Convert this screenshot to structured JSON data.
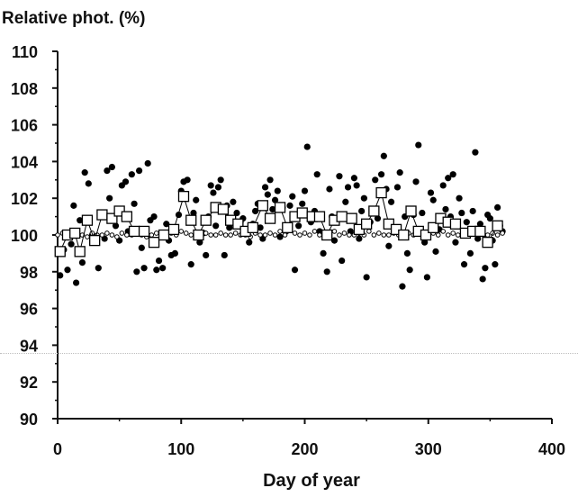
{
  "chart_data": {
    "type": "scatter",
    "ylabel": "Relative phot. (%)",
    "xlabel": "Day of year",
    "xlim": [
      0,
      400
    ],
    "ylim": [
      90,
      110
    ],
    "xticks": [
      0,
      100,
      200,
      300,
      400
    ],
    "yticks": [
      90,
      92,
      94,
      96,
      98,
      100,
      102,
      104,
      106,
      108,
      110
    ],
    "series": [
      {
        "marker": "filled-circle",
        "color": "#000000",
        "points": [
          [
            2,
            97.8
          ],
          [
            5,
            99.2
          ],
          [
            8,
            98.1
          ],
          [
            11,
            99.5
          ],
          [
            13,
            101.6
          ],
          [
            15,
            97.4
          ],
          [
            18,
            100.8
          ],
          [
            20,
            98.5
          ],
          [
            22,
            103.4
          ],
          [
            25,
            102.8
          ],
          [
            28,
            100.0
          ],
          [
            30,
            99.6
          ],
          [
            33,
            98.2
          ],
          [
            35,
            101.2
          ],
          [
            38,
            99.8
          ],
          [
            40,
            103.5
          ],
          [
            42,
            102.0
          ],
          [
            44,
            103.7
          ],
          [
            47,
            100.5
          ],
          [
            50,
            99.7
          ],
          [
            52,
            102.7
          ],
          [
            55,
            102.9
          ],
          [
            57,
            100.2
          ],
          [
            60,
            103.3
          ],
          [
            62,
            101.7
          ],
          [
            64,
            98.0
          ],
          [
            66,
            103.5
          ],
          [
            68,
            99.3
          ],
          [
            70,
            98.2
          ],
          [
            73,
            103.9
          ],
          [
            75,
            100.8
          ],
          [
            78,
            101.0
          ],
          [
            80,
            98.1
          ],
          [
            82,
            98.6
          ],
          [
            85,
            98.2
          ],
          [
            88,
            100.6
          ],
          [
            90,
            99.7
          ],
          [
            92,
            98.9
          ],
          [
            95,
            99.0
          ],
          [
            98,
            101.1
          ],
          [
            100,
            102.4
          ],
          [
            102,
            102.9
          ],
          [
            105,
            103.0
          ],
          [
            108,
            98.4
          ],
          [
            110,
            101.2
          ],
          [
            112,
            101.9
          ],
          [
            115,
            99.6
          ],
          [
            118,
            100.1
          ],
          [
            120,
            98.9
          ],
          [
            122,
            101.0
          ],
          [
            124,
            102.7
          ],
          [
            126,
            102.3
          ],
          [
            128,
            100.5
          ],
          [
            130,
            102.6
          ],
          [
            132,
            103.0
          ],
          [
            135,
            98.9
          ],
          [
            137,
            101.6
          ],
          [
            139,
            100.4
          ],
          [
            142,
            101.8
          ],
          [
            145,
            101.2
          ],
          [
            148,
            100.7
          ],
          [
            150,
            100.9
          ],
          [
            152,
            100.1
          ],
          [
            155,
            99.6
          ],
          [
            158,
            100.6
          ],
          [
            160,
            101.3
          ],
          [
            162,
            101.7
          ],
          [
            164,
            100.4
          ],
          [
            166,
            99.8
          ],
          [
            168,
            102.6
          ],
          [
            170,
            102.2
          ],
          [
            172,
            103.0
          ],
          [
            174,
            101.4
          ],
          [
            176,
            101.9
          ],
          [
            178,
            102.4
          ],
          [
            180,
            99.9
          ],
          [
            182,
            101.5
          ],
          [
            185,
            100.2
          ],
          [
            188,
            101.6
          ],
          [
            190,
            102.1
          ],
          [
            192,
            98.1
          ],
          [
            195,
            100.5
          ],
          [
            198,
            101.7
          ],
          [
            200,
            102.4
          ],
          [
            202,
            104.8
          ],
          [
            205,
            100.7
          ],
          [
            208,
            101.3
          ],
          [
            210,
            103.3
          ],
          [
            212,
            100.2
          ],
          [
            215,
            99.0
          ],
          [
            218,
            98.0
          ],
          [
            220,
            102.5
          ],
          [
            222,
            101.0
          ],
          [
            224,
            99.7
          ],
          [
            226,
            100.9
          ],
          [
            228,
            103.2
          ],
          [
            230,
            98.6
          ],
          [
            233,
            101.8
          ],
          [
            235,
            102.6
          ],
          [
            237,
            100.2
          ],
          [
            240,
            103.1
          ],
          [
            242,
            102.7
          ],
          [
            244,
            99.8
          ],
          [
            246,
            101.3
          ],
          [
            248,
            102.0
          ],
          [
            250,
            97.7
          ],
          [
            253,
            100.7
          ],
          [
            255,
            101.4
          ],
          [
            257,
            103.0
          ],
          [
            259,
            100.9
          ],
          [
            262,
            103.3
          ],
          [
            264,
            104.3
          ],
          [
            266,
            102.5
          ],
          [
            268,
            99.4
          ],
          [
            270,
            101.8
          ],
          [
            272,
            100.4
          ],
          [
            275,
            102.6
          ],
          [
            277,
            103.4
          ],
          [
            279,
            97.2
          ],
          [
            281,
            101.0
          ],
          [
            283,
            99.0
          ],
          [
            285,
            98.1
          ],
          [
            288,
            101.1
          ],
          [
            290,
            102.9
          ],
          [
            292,
            104.9
          ],
          [
            295,
            101.2
          ],
          [
            297,
            99.6
          ],
          [
            299,
            97.7
          ],
          [
            302,
            102.3
          ],
          [
            304,
            101.9
          ],
          [
            306,
            99.1
          ],
          [
            309,
            100.3
          ],
          [
            312,
            102.7
          ],
          [
            314,
            101.4
          ],
          [
            316,
            103.1
          ],
          [
            318,
            101.0
          ],
          [
            320,
            103.3
          ],
          [
            322,
            99.6
          ],
          [
            325,
            102.0
          ],
          [
            327,
            101.2
          ],
          [
            329,
            98.4
          ],
          [
            331,
            100.7
          ],
          [
            334,
            99.0
          ],
          [
            336,
            101.3
          ],
          [
            338,
            104.5
          ],
          [
            340,
            99.8
          ],
          [
            342,
            100.6
          ],
          [
            344,
            97.6
          ],
          [
            346,
            98.2
          ],
          [
            348,
            101.1
          ],
          [
            350,
            100.9
          ],
          [
            352,
            99.7
          ],
          [
            354,
            98.4
          ],
          [
            356,
            101.5
          ],
          [
            358,
            100.5
          ],
          [
            360,
            100.2
          ]
        ]
      },
      {
        "marker": "open-circle",
        "color": "#000000",
        "points": [
          [
            0,
            100.0
          ],
          [
            4,
            100.1
          ],
          [
            8,
            99.9
          ],
          [
            12,
            100.0
          ],
          [
            16,
            100.1
          ],
          [
            20,
            100.0
          ],
          [
            24,
            99.9
          ],
          [
            28,
            100.1
          ],
          [
            32,
            100.0
          ],
          [
            36,
            100.0
          ],
          [
            40,
            100.1
          ],
          [
            44,
            100.0
          ],
          [
            48,
            99.9
          ],
          [
            52,
            100.1
          ],
          [
            56,
            100.0
          ],
          [
            60,
            100.0
          ],
          [
            64,
            100.1
          ],
          [
            68,
            100.0
          ],
          [
            72,
            99.9
          ],
          [
            76,
            100.0
          ],
          [
            80,
            100.1
          ],
          [
            84,
            100.0
          ],
          [
            88,
            100.0
          ],
          [
            92,
            100.1
          ],
          [
            96,
            100.0
          ],
          [
            100,
            100.2
          ],
          [
            104,
            100.1
          ],
          [
            108,
            100.0
          ],
          [
            112,
            100.0
          ],
          [
            116,
            99.9
          ],
          [
            120,
            100.1
          ],
          [
            124,
            100.0
          ],
          [
            128,
            100.0
          ],
          [
            132,
            100.1
          ],
          [
            136,
            100.0
          ],
          [
            140,
            100.0
          ],
          [
            144,
            100.1
          ],
          [
            148,
            100.0
          ],
          [
            152,
            100.0
          ],
          [
            156,
            99.9
          ],
          [
            160,
            100.1
          ],
          [
            164,
            100.0
          ],
          [
            168,
            100.0
          ],
          [
            172,
            100.1
          ],
          [
            176,
            100.0
          ],
          [
            180,
            100.2
          ],
          [
            184,
            100.0
          ],
          [
            188,
            100.3
          ],
          [
            192,
            100.1
          ],
          [
            196,
            100.0
          ],
          [
            200,
            100.1
          ],
          [
            204,
            100.0
          ],
          [
            208,
            100.2
          ],
          [
            212,
            100.0
          ],
          [
            216,
            100.1
          ],
          [
            220,
            100.0
          ],
          [
            224,
            100.2
          ],
          [
            228,
            100.0
          ],
          [
            232,
            100.1
          ],
          [
            236,
            100.0
          ],
          [
            240,
            100.0
          ],
          [
            244,
            100.1
          ],
          [
            248,
            100.0
          ],
          [
            252,
            100.2
          ],
          [
            256,
            100.0
          ],
          [
            260,
            100.1
          ],
          [
            264,
            100.0
          ],
          [
            268,
            100.0
          ],
          [
            272,
            100.1
          ],
          [
            276,
            100.0
          ],
          [
            280,
            100.0
          ],
          [
            284,
            100.1
          ],
          [
            288,
            100.0
          ],
          [
            292,
            100.2
          ],
          [
            296,
            100.1
          ],
          [
            300,
            100.0
          ],
          [
            304,
            100.1
          ],
          [
            308,
            100.0
          ],
          [
            312,
            100.2
          ],
          [
            316,
            100.0
          ],
          [
            320,
            100.1
          ],
          [
            324,
            100.0
          ],
          [
            328,
            100.1
          ],
          [
            332,
            100.0
          ],
          [
            336,
            100.1
          ],
          [
            340,
            100.0
          ],
          [
            344,
            100.2
          ],
          [
            348,
            100.0
          ],
          [
            352,
            100.1
          ],
          [
            356,
            100.0
          ],
          [
            360,
            100.1
          ]
        ]
      },
      {
        "marker": "open-square-line",
        "color": "#000000",
        "points": [
          [
            2,
            99.1
          ],
          [
            8,
            100.0
          ],
          [
            14,
            100.1
          ],
          [
            18,
            99.1
          ],
          [
            24,
            100.8
          ],
          [
            30,
            99.7
          ],
          [
            36,
            101.1
          ],
          [
            44,
            100.9
          ],
          [
            50,
            101.3
          ],
          [
            56,
            101.0
          ],
          [
            62,
            100.2
          ],
          [
            70,
            100.2
          ],
          [
            78,
            99.6
          ],
          [
            86,
            100.0
          ],
          [
            94,
            100.3
          ],
          [
            102,
            102.1
          ],
          [
            108,
            100.8
          ],
          [
            114,
            100.0
          ],
          [
            120,
            100.8
          ],
          [
            128,
            101.5
          ],
          [
            134,
            101.4
          ],
          [
            140,
            100.8
          ],
          [
            146,
            100.6
          ],
          [
            152,
            100.2
          ],
          [
            158,
            100.4
          ],
          [
            166,
            101.6
          ],
          [
            172,
            100.9
          ],
          [
            180,
            101.5
          ],
          [
            186,
            100.4
          ],
          [
            192,
            101.0
          ],
          [
            198,
            101.2
          ],
          [
            206,
            101.0
          ],
          [
            212,
            101.0
          ],
          [
            218,
            100.0
          ],
          [
            224,
            100.8
          ],
          [
            230,
            101.0
          ],
          [
            238,
            100.9
          ],
          [
            244,
            100.3
          ],
          [
            250,
            100.6
          ],
          [
            256,
            101.3
          ],
          [
            262,
            102.3
          ],
          [
            268,
            100.6
          ],
          [
            274,
            100.3
          ],
          [
            280,
            100.0
          ],
          [
            286,
            101.3
          ],
          [
            292,
            100.2
          ],
          [
            298,
            100.0
          ],
          [
            304,
            100.4
          ],
          [
            310,
            100.9
          ],
          [
            316,
            100.7
          ],
          [
            322,
            100.6
          ],
          [
            330,
            100.1
          ],
          [
            336,
            100.2
          ],
          [
            342,
            100.2
          ],
          [
            348,
            99.6
          ],
          [
            356,
            100.5
          ]
        ]
      }
    ]
  }
}
